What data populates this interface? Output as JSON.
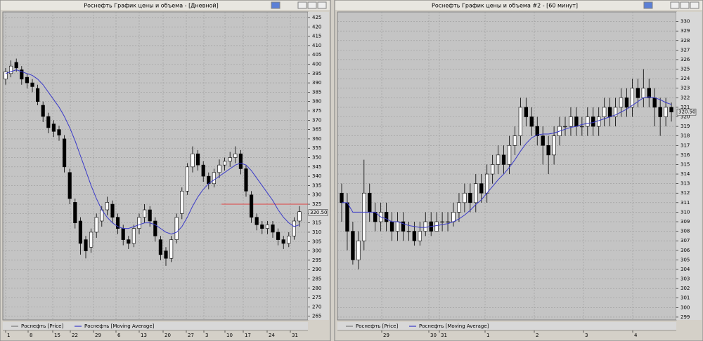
{
  "charts": [
    {
      "type": "candlestick",
      "title": "Роснефть График цены и объема - [Дневной]",
      "ylim": [
        263,
        428
      ],
      "yticks": [
        265,
        270,
        275,
        280,
        285,
        290,
        295,
        300,
        305,
        310,
        315,
        320,
        325,
        330,
        335,
        340,
        345,
        350,
        355,
        360,
        365,
        370,
        375,
        380,
        385,
        390,
        395,
        400,
        405,
        410,
        415,
        420,
        425
      ],
      "x_labels": [
        "1",
        "8",
        "15",
        "22",
        "29",
        "6",
        "13",
        "20",
        "27",
        "3",
        "10",
        "17",
        "24",
        "31"
      ],
      "grid": true,
      "hline": {
        "value": 325,
        "color": "#e04040"
      },
      "last_price": {
        "value": 320.5,
        "label": "320.50"
      },
      "series": [
        {
          "name": "Роснефть [Price]",
          "color": "#000000",
          "open": [
            392,
            395,
            401,
            397,
            393,
            390,
            387,
            378,
            372,
            368,
            365,
            360,
            342,
            326,
            316,
            306,
            302,
            310,
            316,
            322,
            325,
            318,
            312,
            306,
            304,
            312,
            318,
            322,
            316,
            306,
            300,
            296,
            306,
            320,
            332,
            345,
            352,
            346,
            340,
            336,
            342,
            346,
            348,
            350,
            352,
            344,
            330,
            318,
            314,
            312,
            314,
            310,
            306,
            304,
            308,
            316
          ],
          "high": [
            398,
            402,
            403,
            399,
            395,
            392,
            389,
            380,
            374,
            370,
            367,
            362,
            344,
            328,
            318,
            308,
            312,
            320,
            324,
            329,
            327,
            320,
            314,
            308,
            314,
            320,
            325,
            324,
            318,
            308,
            302,
            308,
            320,
            334,
            347,
            356,
            354,
            348,
            342,
            344,
            349,
            350,
            353,
            356,
            354,
            346,
            332,
            320,
            316,
            316,
            316,
            312,
            308,
            310,
            318,
            324
          ],
          "low": [
            389,
            393,
            396,
            389,
            387,
            385,
            378,
            369,
            363,
            361,
            359,
            342,
            325,
            312,
            298,
            296,
            299,
            307,
            313,
            319,
            315,
            309,
            303,
            301,
            302,
            309,
            315,
            313,
            305,
            295,
            292,
            294,
            304,
            317,
            330,
            342,
            343,
            337,
            333,
            334,
            339,
            343,
            345,
            347,
            341,
            329,
            315,
            311,
            309,
            309,
            307,
            303,
            301,
            302,
            306,
            313
          ],
          "close": [
            396,
            399,
            398,
            392,
            390,
            388,
            380,
            372,
            366,
            364,
            362,
            345,
            328,
            315,
            304,
            300,
            310,
            318,
            322,
            326,
            318,
            312,
            306,
            304,
            312,
            318,
            322,
            316,
            308,
            298,
            296,
            306,
            318,
            332,
            345,
            352,
            346,
            340,
            336,
            342,
            346,
            348,
            350,
            352,
            344,
            332,
            318,
            314,
            312,
            314,
            310,
            306,
            304,
            308,
            316,
            321
          ]
        },
        {
          "name": "Роснефть [Moving Average]",
          "color": "#3a3ac8",
          "values": [
            395,
            396,
            397,
            396,
            395,
            394,
            392,
            389,
            385,
            381,
            377,
            372,
            366,
            359,
            351,
            343,
            335,
            328,
            322,
            318,
            315,
            313,
            312,
            312,
            313,
            314,
            315,
            315,
            314,
            312,
            310,
            309,
            310,
            313,
            318,
            324,
            329,
            333,
            336,
            338,
            340,
            342,
            344,
            346,
            347,
            346,
            343,
            339,
            335,
            331,
            327,
            322,
            318,
            315,
            313,
            314
          ]
        }
      ]
    },
    {
      "type": "candlestick",
      "title": "Роснефть График цены и объема #2 - [60 минут]",
      "ylim": [
        298.7,
        331
      ],
      "yticks": [
        299,
        300,
        301,
        302,
        303,
        304,
        305,
        306,
        307,
        308,
        309,
        310,
        311,
        312,
        313,
        314,
        315,
        316,
        317,
        318,
        319,
        320,
        321,
        322,
        323,
        324,
        325,
        326,
        327,
        328,
        329,
        330
      ],
      "x_labels": [
        "29",
        "30",
        "31",
        "1",
        "2",
        "3",
        "4"
      ],
      "grid": true,
      "last_price": {
        "value": 320.5,
        "label": "320.50"
      },
      "series": [
        {
          "name": "Роснефть [Price]",
          "color": "#000000",
          "open": [
            312,
            311,
            308,
            305,
            307,
            312,
            310,
            309,
            310,
            309,
            308,
            309,
            308,
            308,
            307,
            308,
            309,
            308,
            309,
            309,
            309,
            310,
            311,
            312,
            311,
            313,
            312,
            314,
            315,
            316,
            315,
            317,
            318,
            321,
            320,
            319,
            318,
            317,
            316,
            318,
            319,
            319,
            320,
            319,
            319,
            320,
            319,
            320,
            321,
            320,
            321,
            322,
            321,
            323,
            322,
            323,
            322,
            321,
            320,
            321
          ],
          "high": [
            313,
            312,
            309,
            308,
            315.5,
            313,
            311,
            311,
            311,
            310,
            310,
            310,
            309,
            309,
            309,
            310,
            310,
            310,
            310,
            310,
            311,
            312,
            313,
            313,
            314,
            314,
            315,
            316,
            317,
            317,
            318,
            319,
            322,
            322,
            321,
            320,
            319,
            318,
            319,
            320,
            320,
            321,
            321,
            320,
            321,
            321,
            321,
            322,
            322,
            322,
            323,
            323,
            324,
            324,
            325,
            324,
            323,
            322,
            322,
            321.5
          ],
          "low": [
            309,
            306,
            304.5,
            304,
            306,
            309,
            308,
            308,
            308,
            307,
            307,
            307,
            307,
            306.5,
            306.5,
            307.5,
            307.5,
            308,
            308,
            308,
            308.5,
            309,
            310,
            310,
            310,
            311,
            311,
            313,
            314,
            314,
            314,
            316,
            317,
            319,
            318,
            317,
            315,
            314,
            315,
            317,
            318,
            318,
            318,
            318,
            318,
            318,
            318,
            319,
            319,
            319,
            320,
            320,
            320,
            321,
            321,
            321,
            319,
            318,
            319,
            319.5
          ],
          "close": [
            311,
            308,
            305,
            307,
            312,
            310,
            309,
            310,
            309,
            308,
            309,
            308,
            308,
            307,
            308,
            309,
            308,
            309,
            309,
            309,
            310,
            311,
            312,
            311,
            313,
            312,
            314,
            315,
            316,
            315,
            317,
            318,
            321,
            320,
            319,
            318,
            317,
            316,
            318,
            319,
            319,
            320,
            319,
            319,
            320,
            319,
            320,
            321,
            320,
            321,
            322,
            321,
            323,
            322,
            323,
            322,
            321,
            320,
            321,
            320.5
          ]
        },
        {
          "name": "Роснефть [Moving Average]",
          "color": "#3a3ac8",
          "values": [
            311,
            311,
            310,
            310,
            310,
            310,
            310,
            309.5,
            309.3,
            309,
            309,
            308.8,
            308.6,
            308.5,
            308.4,
            308.4,
            308.5,
            308.6,
            308.7,
            308.8,
            309,
            309.3,
            309.7,
            310.2,
            310.8,
            311.3,
            312,
            312.7,
            313.4,
            314,
            314.7,
            315.5,
            316.4,
            317.2,
            317.8,
            318.1,
            318.2,
            318.2,
            318.3,
            318.5,
            318.7,
            318.9,
            319,
            319.2,
            319.3,
            319.4,
            319.6,
            319.8,
            320,
            320.2,
            320.5,
            320.8,
            321.2,
            321.6,
            322,
            322.1,
            322,
            321.8,
            321.5,
            321.3
          ]
        }
      ]
    }
  ]
}
